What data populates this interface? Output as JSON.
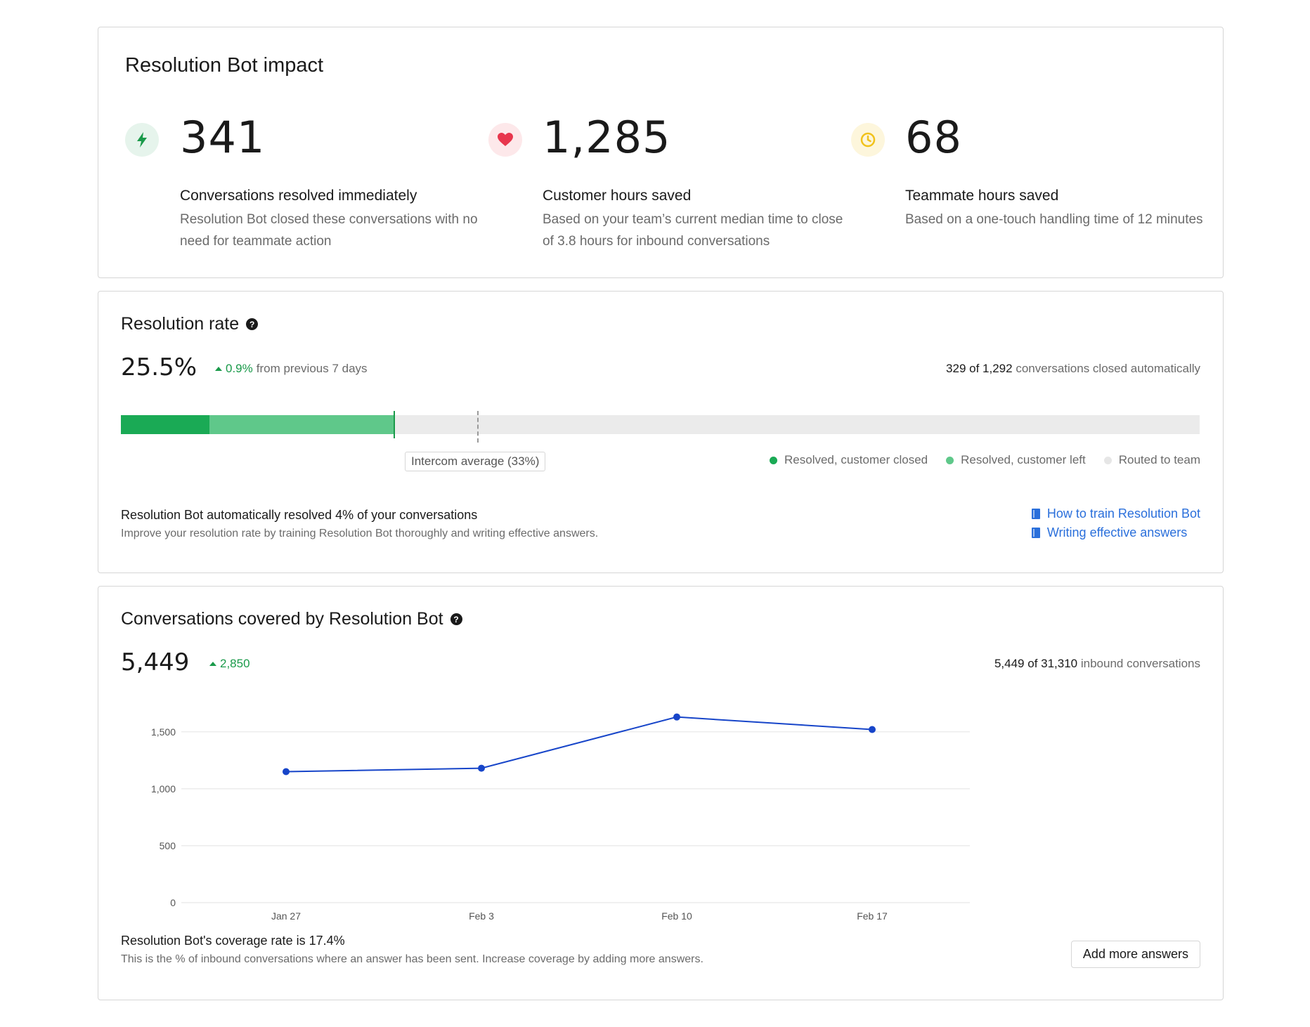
{
  "impact": {
    "title": "Resolution Bot impact",
    "metrics": [
      {
        "icon": "lightning-icon",
        "value": "341",
        "label": "Conversations resolved immediately",
        "description": "Resolution Bot closed these conversations with no need for teammate action"
      },
      {
        "icon": "heart-icon",
        "value": "1,285",
        "label": "Customer hours saved",
        "description": "Based on your team’s current median time to close of 3.8 hours for inbound conversations"
      },
      {
        "icon": "clock-icon",
        "value": "68",
        "label": "Teammate hours saved",
        "description": "Based on a one-touch handling time of 12 minutes"
      }
    ],
    "colors": {
      "lightning": "#1a9a4a",
      "heart": "#e8364d",
      "clock": "#f1c21b"
    }
  },
  "rate": {
    "title": "Resolution rate",
    "value": "25.5%",
    "delta": "0.9%",
    "delta_suffix": "from previous 7 days",
    "summary_bold": "329 of 1,292",
    "summary_rest": "conversations closed automatically",
    "average_label": "Intercom average (33%)",
    "legend": [
      {
        "label": "Resolved, customer closed",
        "color": "#1aaa55"
      },
      {
        "label": "Resolved, customer left",
        "color": "#5fc88a"
      },
      {
        "label": "Routed to team",
        "color": "#e6e6e6"
      }
    ],
    "note_title": "Resolution Bot automatically resolved 4% of your conversations",
    "note_desc": "Improve your resolution rate by training Resolution Bot thoroughly and writing effective answers.",
    "links": [
      "How to train Resolution Bot",
      "Writing effective answers"
    ]
  },
  "coverage": {
    "title": "Conversations covered by Resolution Bot",
    "value": "5,449",
    "delta": "2,850",
    "summary_bold": "5,449 of 31,310",
    "summary_rest": "inbound conversations",
    "note_title": "Resolution Bot's coverage rate is 17.4%",
    "note_desc": "This is the % of inbound conversations where an answer has been sent. Increase coverage by adding more answers.",
    "button": "Add more answers"
  },
  "chart_data": {
    "type": "line",
    "categories": [
      "Jan 27",
      "Feb 3",
      "Feb 10",
      "Feb 17"
    ],
    "values": [
      1150,
      1180,
      1630,
      1520
    ],
    "y_ticks": [
      "0",
      "500",
      "1,000",
      "1,500"
    ],
    "ylim": [
      0,
      1500
    ],
    "grid": true,
    "color": "#1745c9"
  }
}
